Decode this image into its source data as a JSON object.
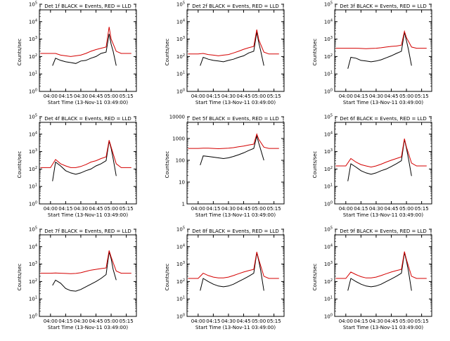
{
  "page": {
    "background": "#ffffff",
    "colors": {
      "events": "#000000",
      "lld": "#d40000",
      "axis": "#000000"
    }
  },
  "chart_data": [
    {
      "type": "line",
      "title": "Det 1f BLACK = Events, RED = LLD",
      "ylabel": "Counts/sec",
      "xlabel": "Start Time (13-Nov-11 03:49:00)",
      "x_ticks": [
        "04:00",
        "04:15",
        "04:30",
        "04:45",
        "05:00",
        "05:15"
      ],
      "y_scale": "log",
      "y_ticks": [
        "10^0",
        "10^1",
        "10^2",
        "10^3",
        "10^4",
        "10^5"
      ],
      "ylim_exp": [
        0,
        5
      ],
      "grid": false,
      "series": [
        {
          "name": "Events",
          "color": "#000000",
          "x": [
            "04:02",
            "04:05",
            "04:10",
            "04:15",
            "04:20",
            "04:25",
            "04:30",
            "04:35",
            "04:40",
            "04:45",
            "04:50",
            "04:55",
            "04:58",
            "05:00",
            "05:02",
            "05:05"
          ],
          "y": [
            30,
            80,
            60,
            50,
            45,
            40,
            55,
            60,
            80,
            100,
            150,
            180,
            2000,
            500,
            200,
            30
          ]
        },
        {
          "name": "LLD",
          "color": "#d40000",
          "x": [
            "03:50",
            "04:00",
            "04:05",
            "04:10",
            "04:15",
            "04:20",
            "04:25",
            "04:30",
            "04:35",
            "04:40",
            "04:45",
            "04:50",
            "04:55",
            "04:58",
            "05:00",
            "05:05",
            "05:10",
            "05:20"
          ],
          "y": [
            150,
            150,
            150,
            120,
            110,
            100,
            110,
            120,
            150,
            200,
            250,
            300,
            350,
            5000,
            1000,
            200,
            150,
            150
          ]
        }
      ]
    },
    {
      "type": "line",
      "title": "Det 2f BLACK = Events, RED = LLD",
      "ylabel": "Counts/sec",
      "xlabel": "Start Time (13-Nov-11 03:49:00)",
      "x_ticks": [
        "04:00",
        "04:15",
        "04:30",
        "04:45",
        "05:00",
        "05:15"
      ],
      "y_scale": "log",
      "y_ticks": [
        "10^0",
        "10^1",
        "10^2",
        "10^3",
        "10^4",
        "10^5"
      ],
      "ylim_exp": [
        0,
        5
      ],
      "grid": false,
      "series": [
        {
          "name": "Events",
          "color": "#000000",
          "x": [
            "04:02",
            "04:05",
            "04:10",
            "04:15",
            "04:20",
            "04:25",
            "04:30",
            "04:35",
            "04:40",
            "04:45",
            "04:50",
            "04:55",
            "04:58",
            "05:00",
            "05:02",
            "05:05"
          ],
          "y": [
            30,
            90,
            70,
            60,
            55,
            50,
            60,
            70,
            90,
            110,
            160,
            200,
            2500,
            600,
            200,
            30
          ]
        },
        {
          "name": "LLD",
          "color": "#d40000",
          "x": [
            "03:50",
            "04:00",
            "04:05",
            "04:10",
            "04:15",
            "04:20",
            "04:25",
            "04:30",
            "04:35",
            "04:40",
            "04:45",
            "04:50",
            "04:55",
            "04:58",
            "05:00",
            "05:05",
            "05:10",
            "05:20"
          ],
          "y": [
            140,
            140,
            150,
            130,
            120,
            110,
            120,
            130,
            160,
            200,
            260,
            320,
            380,
            3500,
            900,
            180,
            140,
            140
          ]
        }
      ]
    },
    {
      "type": "line",
      "title": "Det 3f BLACK = Events, RED = LLD",
      "ylabel": "Counts/sec",
      "xlabel": "Start Time (13-Nov-11 03:49:00)",
      "x_ticks": [
        "04:00",
        "04:15",
        "04:30",
        "04:45",
        "05:00",
        "05:15"
      ],
      "y_scale": "log",
      "y_ticks": [
        "10^0",
        "10^1",
        "10^2",
        "10^3",
        "10^4",
        "10^5"
      ],
      "ylim_exp": [
        0,
        5
      ],
      "grid": false,
      "series": [
        {
          "name": "Events",
          "color": "#000000",
          "x": [
            "04:02",
            "04:05",
            "04:10",
            "04:15",
            "04:20",
            "04:25",
            "04:30",
            "04:35",
            "04:40",
            "04:45",
            "04:50",
            "04:55",
            "04:58",
            "05:00",
            "05:02",
            "05:05"
          ],
          "y": [
            20,
            90,
            80,
            60,
            55,
            50,
            55,
            65,
            85,
            110,
            150,
            200,
            2500,
            800,
            250,
            30
          ]
        },
        {
          "name": "LLD",
          "color": "#d40000",
          "x": [
            "03:50",
            "04:00",
            "04:05",
            "04:10",
            "04:15",
            "04:20",
            "04:25",
            "04:30",
            "04:35",
            "04:40",
            "04:45",
            "04:50",
            "04:55",
            "04:58",
            "05:00",
            "05:05",
            "05:10",
            "05:20"
          ],
          "y": [
            300,
            300,
            300,
            300,
            290,
            280,
            290,
            300,
            320,
            350,
            380,
            400,
            450,
            2800,
            1200,
            350,
            300,
            300
          ]
        }
      ]
    },
    {
      "type": "line",
      "title": "Det 4f BLACK = Events, RED = LLD",
      "ylabel": "Counts/sec",
      "xlabel": "Start Time (13-Nov-11 03:49:00)",
      "x_ticks": [
        "04:00",
        "04:15",
        "04:30",
        "04:45",
        "05:00",
        "05:15"
      ],
      "y_scale": "log",
      "y_ticks": [
        "10^0",
        "10^1",
        "10^2",
        "10^3",
        "10^4",
        "10^5"
      ],
      "ylim_exp": [
        0,
        5
      ],
      "grid": false,
      "series": [
        {
          "name": "Events",
          "color": "#000000",
          "x": [
            "04:02",
            "04:05",
            "04:10",
            "04:15",
            "04:20",
            "04:25",
            "04:30",
            "04:35",
            "04:40",
            "04:45",
            "04:50",
            "04:55",
            "04:58",
            "05:00",
            "05:02",
            "05:05"
          ],
          "y": [
            20,
            250,
            150,
            80,
            60,
            50,
            60,
            80,
            100,
            150,
            200,
            300,
            4000,
            1500,
            400,
            40
          ]
        },
        {
          "name": "LLD",
          "color": "#d40000",
          "x": [
            "03:50",
            "04:00",
            "04:05",
            "04:10",
            "04:15",
            "04:20",
            "04:25",
            "04:30",
            "04:35",
            "04:40",
            "04:45",
            "04:50",
            "04:55",
            "04:58",
            "05:00",
            "05:05",
            "05:10",
            "05:20"
          ],
          "y": [
            120,
            120,
            350,
            200,
            150,
            120,
            120,
            140,
            180,
            250,
            300,
            400,
            500,
            4500,
            1800,
            200,
            120,
            120
          ]
        }
      ]
    },
    {
      "type": "line",
      "title": "Det 5f BLACK = Events, RED = LLD",
      "ylabel": "Counts/sec",
      "xlabel": "Start Time (13-Nov-11 03:49:00)",
      "x_ticks": [
        "04:00",
        "04:15",
        "04:30",
        "04:45",
        "05:00",
        "05:15"
      ],
      "y_scale": "log",
      "y_ticks": [
        "1",
        "10",
        "100",
        "1000",
        "10000"
      ],
      "ylim_exp": [
        0,
        4
      ],
      "grid": false,
      "series": [
        {
          "name": "Events",
          "color": "#000000",
          "x": [
            "04:02",
            "04:05",
            "04:10",
            "04:15",
            "04:20",
            "04:25",
            "04:30",
            "04:35",
            "04:40",
            "04:45",
            "04:50",
            "04:55",
            "04:58",
            "05:00",
            "05:02",
            "05:05"
          ],
          "y": [
            60,
            160,
            150,
            140,
            130,
            120,
            130,
            150,
            180,
            220,
            280,
            350,
            1300,
            600,
            300,
            100
          ]
        },
        {
          "name": "LLD",
          "color": "#d40000",
          "x": [
            "03:50",
            "04:00",
            "04:05",
            "04:10",
            "04:15",
            "04:20",
            "04:25",
            "04:30",
            "04:35",
            "04:40",
            "04:45",
            "04:50",
            "04:55",
            "04:58",
            "05:00",
            "05:05",
            "05:10",
            "05:20"
          ],
          "y": [
            350,
            350,
            360,
            360,
            350,
            340,
            350,
            360,
            380,
            420,
            450,
            500,
            550,
            1600,
            900,
            400,
            350,
            350
          ]
        }
      ]
    },
    {
      "type": "line",
      "title": "Det 6f BLACK = Events, RED = LLD",
      "ylabel": "Counts/sec",
      "xlabel": "Start Time (13-Nov-11 03:49:00)",
      "x_ticks": [
        "04:00",
        "04:15",
        "04:30",
        "04:45",
        "05:00",
        "05:15"
      ],
      "y_scale": "log",
      "y_ticks": [
        "10^0",
        "10^1",
        "10^2",
        "10^3",
        "10^4",
        "10^5"
      ],
      "ylim_exp": [
        0,
        5
      ],
      "grid": false,
      "series": [
        {
          "name": "Events",
          "color": "#000000",
          "x": [
            "04:02",
            "04:05",
            "04:10",
            "04:15",
            "04:20",
            "04:25",
            "04:30",
            "04:35",
            "04:40",
            "04:45",
            "04:50",
            "04:55",
            "04:58",
            "05:00",
            "05:02",
            "05:05"
          ],
          "y": [
            20,
            200,
            130,
            80,
            60,
            50,
            60,
            80,
            100,
            140,
            200,
            300,
            5000,
            1500,
            400,
            40
          ]
        },
        {
          "name": "LLD",
          "color": "#d40000",
          "x": [
            "03:50",
            "04:00",
            "04:05",
            "04:10",
            "04:15",
            "04:20",
            "04:25",
            "04:30",
            "04:35",
            "04:40",
            "04:45",
            "04:50",
            "04:55",
            "04:58",
            "05:00",
            "05:05",
            "05:10",
            "05:20"
          ],
          "y": [
            150,
            150,
            400,
            250,
            180,
            150,
            130,
            150,
            190,
            250,
            320,
            400,
            500,
            5500,
            1800,
            220,
            150,
            150
          ]
        }
      ]
    },
    {
      "type": "line",
      "title": "Det 7f BLACK = Events, RED = LLD",
      "ylabel": "Counts/sec",
      "xlabel": "Start Time (13-Nov-11 03:49:00)",
      "x_ticks": [
        "04:00",
        "04:15",
        "04:30",
        "04:45",
        "05:00",
        "05:15"
      ],
      "y_scale": "log",
      "y_ticks": [
        "10^0",
        "10^1",
        "10^2",
        "10^3",
        "10^4",
        "10^5"
      ],
      "ylim_exp": [
        0,
        5
      ],
      "grid": false,
      "series": [
        {
          "name": "Events",
          "color": "#000000",
          "x": [
            "04:02",
            "04:05",
            "04:10",
            "04:15",
            "04:20",
            "04:25",
            "04:30",
            "04:35",
            "04:40",
            "04:45",
            "04:50",
            "04:55",
            "04:58",
            "05:00",
            "05:02",
            "05:05"
          ],
          "y": [
            60,
            120,
            80,
            40,
            30,
            28,
            35,
            50,
            70,
            100,
            150,
            250,
            5000,
            2000,
            500,
            120
          ]
        },
        {
          "name": "LLD",
          "color": "#d40000",
          "x": [
            "03:50",
            "04:00",
            "04:05",
            "04:10",
            "04:15",
            "04:20",
            "04:25",
            "04:30",
            "04:35",
            "04:40",
            "04:45",
            "04:50",
            "04:55",
            "04:58",
            "05:00",
            "05:05",
            "05:10",
            "05:20"
          ],
          "y": [
            300,
            300,
            310,
            300,
            290,
            280,
            290,
            320,
            380,
            450,
            500,
            550,
            600,
            6000,
            2500,
            400,
            300,
            300
          ]
        }
      ]
    },
    {
      "type": "line",
      "title": "Det 8f BLACK = Events, RED = LLD",
      "ylabel": "Counts/sec",
      "xlabel": "Start Time (13-Nov-11 03:49:00)",
      "x_ticks": [
        "04:00",
        "04:15",
        "04:30",
        "04:45",
        "05:00",
        "05:15"
      ],
      "y_scale": "log",
      "y_ticks": [
        "10^0",
        "10^1",
        "10^2",
        "10^3",
        "10^4",
        "10^5"
      ],
      "ylim_exp": [
        0,
        5
      ],
      "grid": false,
      "series": [
        {
          "name": "Events",
          "color": "#000000",
          "x": [
            "04:02",
            "04:05",
            "04:10",
            "04:15",
            "04:20",
            "04:25",
            "04:30",
            "04:35",
            "04:40",
            "04:45",
            "04:50",
            "04:55",
            "04:58",
            "05:00",
            "05:02",
            "05:05"
          ],
          "y": [
            30,
            150,
            100,
            70,
            55,
            50,
            55,
            70,
            100,
            140,
            200,
            300,
            4500,
            1500,
            400,
            30
          ]
        },
        {
          "name": "LLD",
          "color": "#d40000",
          "x": [
            "03:50",
            "04:00",
            "04:05",
            "04:10",
            "04:15",
            "04:20",
            "04:25",
            "04:30",
            "04:35",
            "04:40",
            "04:45",
            "04:50",
            "04:55",
            "04:58",
            "05:00",
            "05:05",
            "05:10",
            "05:20"
          ],
          "y": [
            150,
            150,
            300,
            220,
            180,
            160,
            160,
            180,
            220,
            280,
            350,
            420,
            500,
            5000,
            1800,
            200,
            150,
            150
          ]
        }
      ]
    },
    {
      "type": "line",
      "title": "Det 9f BLACK = Events, RED = LLD",
      "ylabel": "Counts/sec",
      "xlabel": "Start Time (13-Nov-11 03:49:00)",
      "x_ticks": [
        "04:00",
        "04:15",
        "04:30",
        "04:45",
        "05:00",
        "05:15"
      ],
      "y_scale": "log",
      "y_ticks": [
        "10^0",
        "10^1",
        "10^2",
        "10^3",
        "10^4",
        "10^5"
      ],
      "ylim_exp": [
        0,
        5
      ],
      "grid": false,
      "series": [
        {
          "name": "Events",
          "color": "#000000",
          "x": [
            "04:02",
            "04:05",
            "04:10",
            "04:15",
            "04:20",
            "04:25",
            "04:30",
            "04:35",
            "04:40",
            "04:45",
            "04:50",
            "04:55",
            "04:58",
            "05:00",
            "05:02",
            "05:05"
          ],
          "y": [
            30,
            150,
            100,
            70,
            55,
            50,
            55,
            70,
            100,
            140,
            200,
            300,
            4500,
            1500,
            400,
            30
          ]
        },
        {
          "name": "LLD",
          "color": "#d40000",
          "x": [
            "03:50",
            "04:00",
            "04:05",
            "04:10",
            "04:15",
            "04:20",
            "04:25",
            "04:30",
            "04:35",
            "04:40",
            "04:45",
            "04:50",
            "04:55",
            "04:58",
            "05:00",
            "05:05",
            "05:10",
            "05:20"
          ],
          "y": [
            150,
            150,
            350,
            250,
            190,
            160,
            160,
            180,
            220,
            280,
            350,
            420,
            500,
            5200,
            1800,
            200,
            150,
            150
          ]
        }
      ]
    }
  ]
}
